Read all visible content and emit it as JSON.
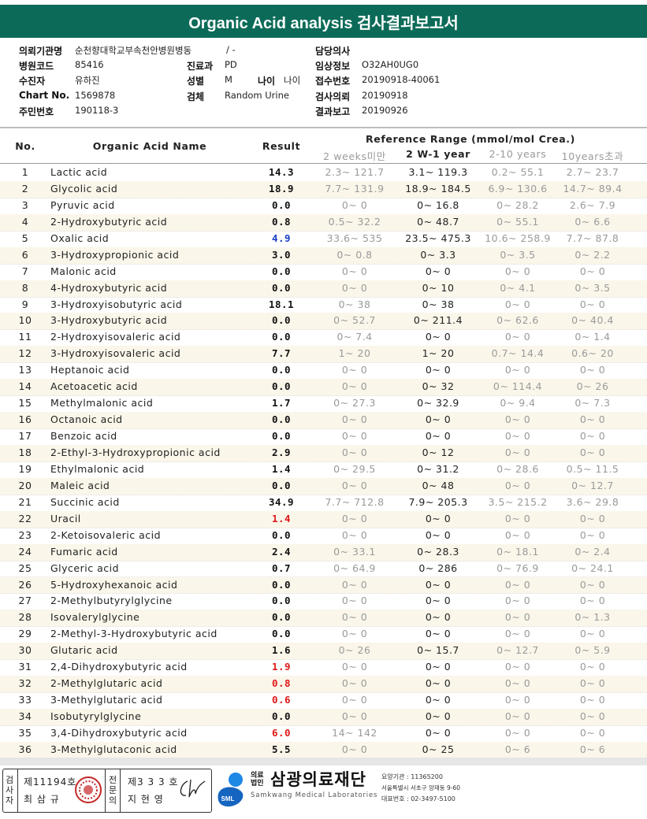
{
  "header": {
    "title": "Organic Acid analysis 검사결과보고서"
  },
  "info": {
    "left": [
      {
        "label": "의뢰기관명",
        "value": "순천향대학교부속천안병원병동",
        "extra": "/ -"
      },
      {
        "label": "병원코드",
        "value": "85416"
      },
      {
        "label": "수진자",
        "value": "유하진"
      },
      {
        "label": "Chart No.",
        "value": "1569878"
      },
      {
        "label": "주민번호",
        "value": "190118-3"
      }
    ],
    "middle": [
      {
        "label": "진료과",
        "value": "PD"
      },
      {
        "label": "성별",
        "value": "M"
      },
      {
        "label": "나이",
        "value": "나이"
      },
      {
        "label": "검체",
        "value": "Random Urine"
      }
    ],
    "right": [
      {
        "label": "담당의사"
      },
      {
        "label": "임상정보",
        "value": "O32AH0UG0"
      },
      {
        "label": "접수번호",
        "value": "20190918-40061"
      },
      {
        "label": "검사의뢰",
        "value": "20190918"
      },
      {
        "label": "결과보고",
        "value": "20190926"
      }
    ]
  },
  "table": {
    "columns": {
      "no": "No.",
      "name": "Organic Acid Name",
      "result": "Result",
      "reference": "Reference Range (mmol/mol Crea.)",
      "age_groups": [
        "2 weeks미만",
        "2 W-1 year",
        "2-10 years",
        "10years초과"
      ]
    },
    "rows": [
      {
        "no": 1,
        "name": "Lactic acid",
        "result": "14.3",
        "ranges": [
          "2.3~ 121.7",
          "3.1~ 119.3",
          "0.2~ 55.1",
          "2.7~ 23.7"
        ]
      },
      {
        "no": 2,
        "name": "Glycolic acid",
        "result": "18.9",
        "ranges": [
          "7.7~ 131.9",
          "18.9~ 184.5",
          "6.9~ 130.6",
          "14.7~ 89.4"
        ]
      },
      {
        "no": 3,
        "name": "Pyruvic acid",
        "result": "0.0",
        "ranges": [
          "0~ 0",
          "0~ 16.8",
          "0~ 28.2",
          "2.6~ 7.9"
        ]
      },
      {
        "no": 4,
        "name": "2-Hydroxybutyric acid",
        "result": "0.8",
        "ranges": [
          "0.5~ 32.2",
          "0~ 48.7",
          "0~ 55.1",
          "0~ 6.6"
        ]
      },
      {
        "no": 5,
        "name": "Oxalic acid",
        "result": "4.9",
        "result_color": "#1a3fc4",
        "ranges": [
          "33.6~ 535",
          "23.5~ 475.3",
          "10.6~ 258.9",
          "7.7~ 87.8"
        ]
      },
      {
        "no": 6,
        "name": "3-Hydroxypropionic acid",
        "result": "3.0",
        "ranges": [
          "0~ 0.8",
          "0~ 3.3",
          "0~ 3.5",
          "0~ 2.2"
        ]
      },
      {
        "no": 7,
        "name": "Malonic acid",
        "result": "0.0",
        "ranges": [
          "0~ 0",
          "0~ 0",
          "0~ 0",
          "0~ 0"
        ]
      },
      {
        "no": 8,
        "name": "4-Hydroxybutyric acid",
        "result": "0.0",
        "ranges": [
          "0~ 0",
          "0~ 10",
          "0~ 4.1",
          "0~ 3.5"
        ]
      },
      {
        "no": 9,
        "name": "3-Hydroxyisobutyric acid",
        "result": "18.1",
        "ranges": [
          "0~ 38",
          "0~ 38",
          "0~ 0",
          "0~ 0"
        ]
      },
      {
        "no": 10,
        "name": "3-Hydroxybutyric acid",
        "result": "0.0",
        "ranges": [
          "0~ 52.7",
          "0~ 211.4",
          "0~ 62.6",
          "0~ 40.4"
        ]
      },
      {
        "no": 11,
        "name": "2-Hydroxyisovaleric acid",
        "result": "0.0",
        "ranges": [
          "0~ 7.4",
          "0~ 0",
          "0~ 0",
          "0~ 1.4"
        ]
      },
      {
        "no": 12,
        "name": "3-Hydroxyisovaleric acid",
        "result": "7.7",
        "ranges": [
          "1~ 20",
          "1~ 20",
          "0.7~ 14.4",
          "0.6~ 20"
        ]
      },
      {
        "no": 13,
        "name": "Heptanoic acid",
        "result": "0.0",
        "ranges": [
          "0~ 0",
          "0~ 0",
          "0~ 0",
          "0~ 0"
        ]
      },
      {
        "no": 14,
        "name": "Acetoacetic acid",
        "result": "0.0",
        "ranges": [
          "0~ 0",
          "0~ 32",
          "0~ 114.4",
          "0~ 26"
        ]
      },
      {
        "no": 15,
        "name": "Methylmalonic acid",
        "result": "1.7",
        "ranges": [
          "0~ 27.3",
          "0~ 32.9",
          "0~ 9.4",
          "0~ 7.3"
        ]
      },
      {
        "no": 16,
        "name": "Octanoic acid",
        "result": "0.0",
        "ranges": [
          "0~ 0",
          "0~ 0",
          "0~ 0",
          "0~ 0"
        ]
      },
      {
        "no": 17,
        "name": "Benzoic acid",
        "result": "0.0",
        "ranges": [
          "0~ 0",
          "0~ 0",
          "0~ 0",
          "0~ 0"
        ]
      },
      {
        "no": 18,
        "name": "2-Ethyl-3-Hydroxypropionic acid",
        "result": "2.9",
        "ranges": [
          "0~ 0",
          "0~ 12",
          "0~ 0",
          "0~ 0"
        ]
      },
      {
        "no": 19,
        "name": "Ethylmalonic acid",
        "result": "1.4",
        "ranges": [
          "0~ 29.5",
          "0~ 31.2",
          "0~ 28.6",
          "0.5~ 11.5"
        ]
      },
      {
        "no": 20,
        "name": "Maleic acid",
        "result": "0.0",
        "ranges": [
          "0~ 0",
          "0~ 48",
          "0~ 0",
          "0~ 12.7"
        ]
      },
      {
        "no": 21,
        "name": "Succinic acid",
        "result": "34.9",
        "ranges": [
          "7.7~ 712.8",
          "7.9~ 205.3",
          "3.5~ 215.2",
          "3.6~ 29.8"
        ]
      },
      {
        "no": 22,
        "name": "Uracil",
        "result": "1.4",
        "result_color": "#e01818",
        "ranges": [
          "0~ 0",
          "0~ 0",
          "0~ 0",
          "0~ 0"
        ]
      },
      {
        "no": 23,
        "name": "2-Ketoisovaleric acid",
        "result": "0.0",
        "ranges": [
          "0~ 0",
          "0~ 0",
          "0~ 0",
          "0~ 0"
        ]
      },
      {
        "no": 24,
        "name": "Fumaric acid",
        "result": "2.4",
        "ranges": [
          "0~ 33.1",
          "0~ 28.3",
          "0~ 18.1",
          "0~ 2.4"
        ]
      },
      {
        "no": 25,
        "name": "Glyceric acid",
        "result": "0.7",
        "ranges": [
          "0~ 64.9",
          "0~ 286",
          "0~ 76.9",
          "0~ 24.1"
        ]
      },
      {
        "no": 26,
        "name": "5-Hydroxyhexanoic acid",
        "result": "0.0",
        "ranges": [
          "0~ 0",
          "0~ 0",
          "0~ 0",
          "0~ 0"
        ]
      },
      {
        "no": 27,
        "name": "2-Methylbutyrylglycine",
        "result": "0.0",
        "ranges": [
          "0~ 0",
          "0~ 0",
          "0~ 0",
          "0~ 0"
        ]
      },
      {
        "no": 28,
        "name": "Isovalerylglycine",
        "result": "0.0",
        "ranges": [
          "0~ 0",
          "0~ 0",
          "0~ 0",
          "0~ 1.3"
        ]
      },
      {
        "no": 29,
        "name": "2-Methyl-3-Hydroxybutyric acid",
        "result": "0.0",
        "ranges": [
          "0~ 0",
          "0~ 0",
          "0~ 0",
          "0~ 0"
        ]
      },
      {
        "no": 30,
        "name": "Glutaric acid",
        "result": "1.6",
        "ranges": [
          "0~ 26",
          "0~ 15.7",
          "0~ 12.7",
          "0~ 5.9"
        ]
      },
      {
        "no": 31,
        "name": "2,4-Dihydroxybutyric acid",
        "result": "1.9",
        "result_color": "#e01818",
        "ranges": [
          "0~ 0",
          "0~ 0",
          "0~ 0",
          "0~ 0"
        ]
      },
      {
        "no": 32,
        "name": "2-Methylglutaric acid",
        "result": "0.8",
        "result_color": "#e01818",
        "ranges": [
          "0~ 0",
          "0~ 0",
          "0~ 0",
          "0~ 0"
        ]
      },
      {
        "no": 33,
        "name": "3-Methylglutaric acid",
        "result": "0.6",
        "result_color": "#e01818",
        "ranges": [
          "0~ 0",
          "0~ 0",
          "0~ 0",
          "0~ 0"
        ]
      },
      {
        "no": 34,
        "name": "Isobutyrylglycine",
        "result": "0.0",
        "ranges": [
          "0~ 0",
          "0~ 0",
          "0~ 0",
          "0~ 0"
        ]
      },
      {
        "no": 35,
        "name": "3,4-Dihydroxybutyric acid",
        "result": "6.0",
        "result_color": "#e01818",
        "ranges": [
          "14~ 142",
          "0~ 0",
          "0~ 0",
          "0~ 0"
        ]
      },
      {
        "no": 36,
        "name": "3-Methylglutaconic acid",
        "result": "5.5",
        "ranges": [
          "0~ 0",
          "0~ 25",
          "0~ 6",
          "0~ 6"
        ]
      }
    ]
  },
  "footer": {
    "examiner": {
      "role": "검사자",
      "number": "제11194호",
      "name": "최 삼 규"
    },
    "specialist": {
      "role": "전문의",
      "number": "제3 3 3 호",
      "name": "지 현 영"
    },
    "org": {
      "logo": "SML",
      "type": "의료법인",
      "name": "삼광의료재단",
      "english": "Samkwang Medical Laboratories",
      "code": "요양기관 : 11365200",
      "address": "서울특별시 서초구 양재동 9-60",
      "phone": "대표번호 : 02-3497-5100"
    }
  }
}
